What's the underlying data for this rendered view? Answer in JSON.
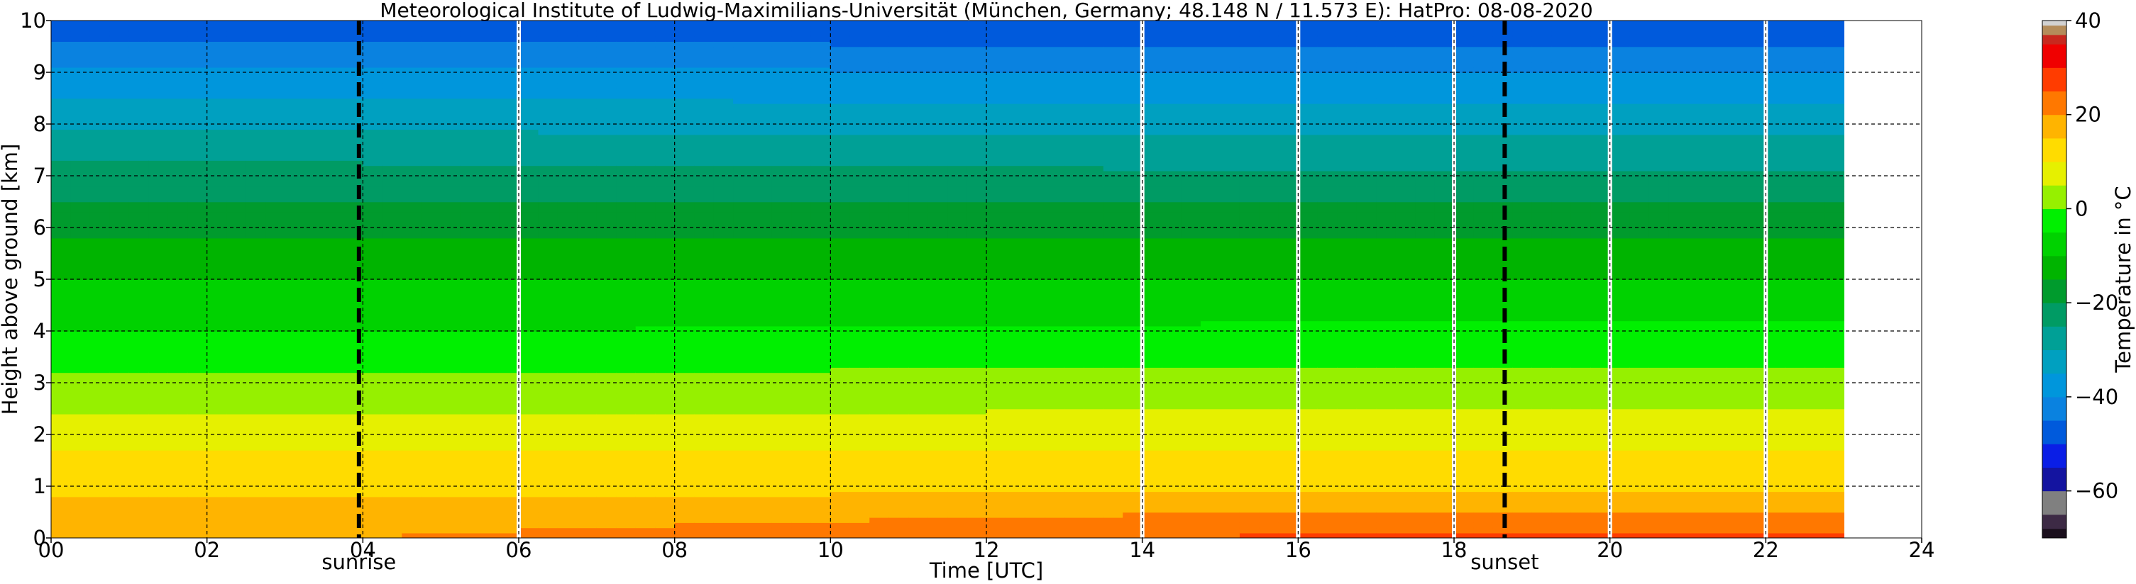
{
  "chart_data": {
    "type": "heatmap",
    "title": "Meteorological Institute of Ludwig-Maximilians-Universität (München, Germany; 48.148 N / 11.573 E):    HatPro: 08-08-2020",
    "xlabel": "Time [UTC]",
    "ylabel": "Height above ground [km]",
    "xlim": [
      0,
      24
    ],
    "ylim": [
      0,
      10
    ],
    "x_ticks": [
      "00",
      "02",
      "04",
      "06",
      "08",
      "10",
      "12",
      "14",
      "16",
      "18",
      "20",
      "22",
      "24"
    ],
    "y_ticks": [
      "0",
      "1",
      "2",
      "3",
      "4",
      "5",
      "6",
      "7",
      "8",
      "9",
      "10"
    ],
    "grid": true,
    "data_end_hour": 23.0,
    "missing_data_hours": [
      6.0,
      14.0,
      16.0,
      18.0,
      20.0,
      22.0
    ],
    "events": [
      {
        "label": "sunrise",
        "hour": 3.95
      },
      {
        "label": "sunset",
        "hour": 18.65
      }
    ],
    "temperature_profile": {
      "heights_km": [
        0,
        0.5,
        1,
        1.5,
        2,
        2.5,
        3,
        3.5,
        4,
        4.5,
        5,
        5.5,
        6,
        6.5,
        7,
        7.5,
        8,
        8.5,
        9,
        9.5,
        10
      ],
      "night_temp_c": [
        20,
        17,
        13,
        11,
        8,
        4,
        1,
        -2,
        -5,
        -8,
        -10,
        -13,
        -16,
        -20,
        -23,
        -27,
        -31,
        -35,
        -39,
        -44,
        -49
      ],
      "day_temp_c": [
        26,
        20,
        14,
        11,
        8,
        5,
        2,
        -1,
        -4,
        -7,
        -10,
        -13,
        -16,
        -20,
        -24,
        -28,
        -32,
        -36,
        -40,
        -45,
        -50
      ],
      "day_peak_hour": 16
    },
    "colorbar": {
      "label": "Temperature in $^\\circ$C",
      "label_display": "Temperature in °C",
      "ticks": [
        "−60",
        "−40",
        "−20",
        "0",
        "20",
        "40"
      ],
      "tick_values": [
        -60,
        -40,
        -20,
        0,
        20,
        40
      ],
      "range": [
        -70,
        40
      ],
      "segments": [
        {
          "from": -70,
          "to": -68,
          "color": "#1a0f1c"
        },
        {
          "from": -68,
          "to": -65,
          "color": "#3d2a45"
        },
        {
          "from": -65,
          "to": -60,
          "color": "#808080"
        },
        {
          "from": -60,
          "to": -55,
          "color": "#1414a0"
        },
        {
          "from": -55,
          "to": -50,
          "color": "#0a1ee6"
        },
        {
          "from": -50,
          "to": -45,
          "color": "#005adc"
        },
        {
          "from": -45,
          "to": -40,
          "color": "#0a82e0"
        },
        {
          "from": -40,
          "to": -35,
          "color": "#0096dc"
        },
        {
          "from": -35,
          "to": -30,
          "color": "#00a0c0"
        },
        {
          "from": -30,
          "to": -25,
          "color": "#00a096"
        },
        {
          "from": -25,
          "to": -20,
          "color": "#009b64"
        },
        {
          "from": -20,
          "to": -15,
          "color": "#009b2d"
        },
        {
          "from": -15,
          "to": -10,
          "color": "#00b400"
        },
        {
          "from": -10,
          "to": -5,
          "color": "#00d200"
        },
        {
          "from": -5,
          "to": 0,
          "color": "#00f000"
        },
        {
          "from": 0,
          "to": 5,
          "color": "#96f000"
        },
        {
          "from": 5,
          "to": 10,
          "color": "#e6f000"
        },
        {
          "from": 10,
          "to": 15,
          "color": "#ffdc00"
        },
        {
          "from": 15,
          "to": 20,
          "color": "#ffb400"
        },
        {
          "from": 20,
          "to": 25,
          "color": "#ff7800"
        },
        {
          "from": 25,
          "to": 30,
          "color": "#ff3c00"
        },
        {
          "from": 30,
          "to": 35,
          "color": "#f00000"
        },
        {
          "from": 35,
          "to": 37,
          "color": "#c8281e"
        },
        {
          "from": 37,
          "to": 39,
          "color": "#b48c5a"
        },
        {
          "from": 39,
          "to": 40,
          "color": "#d2d2d2"
        }
      ]
    }
  }
}
